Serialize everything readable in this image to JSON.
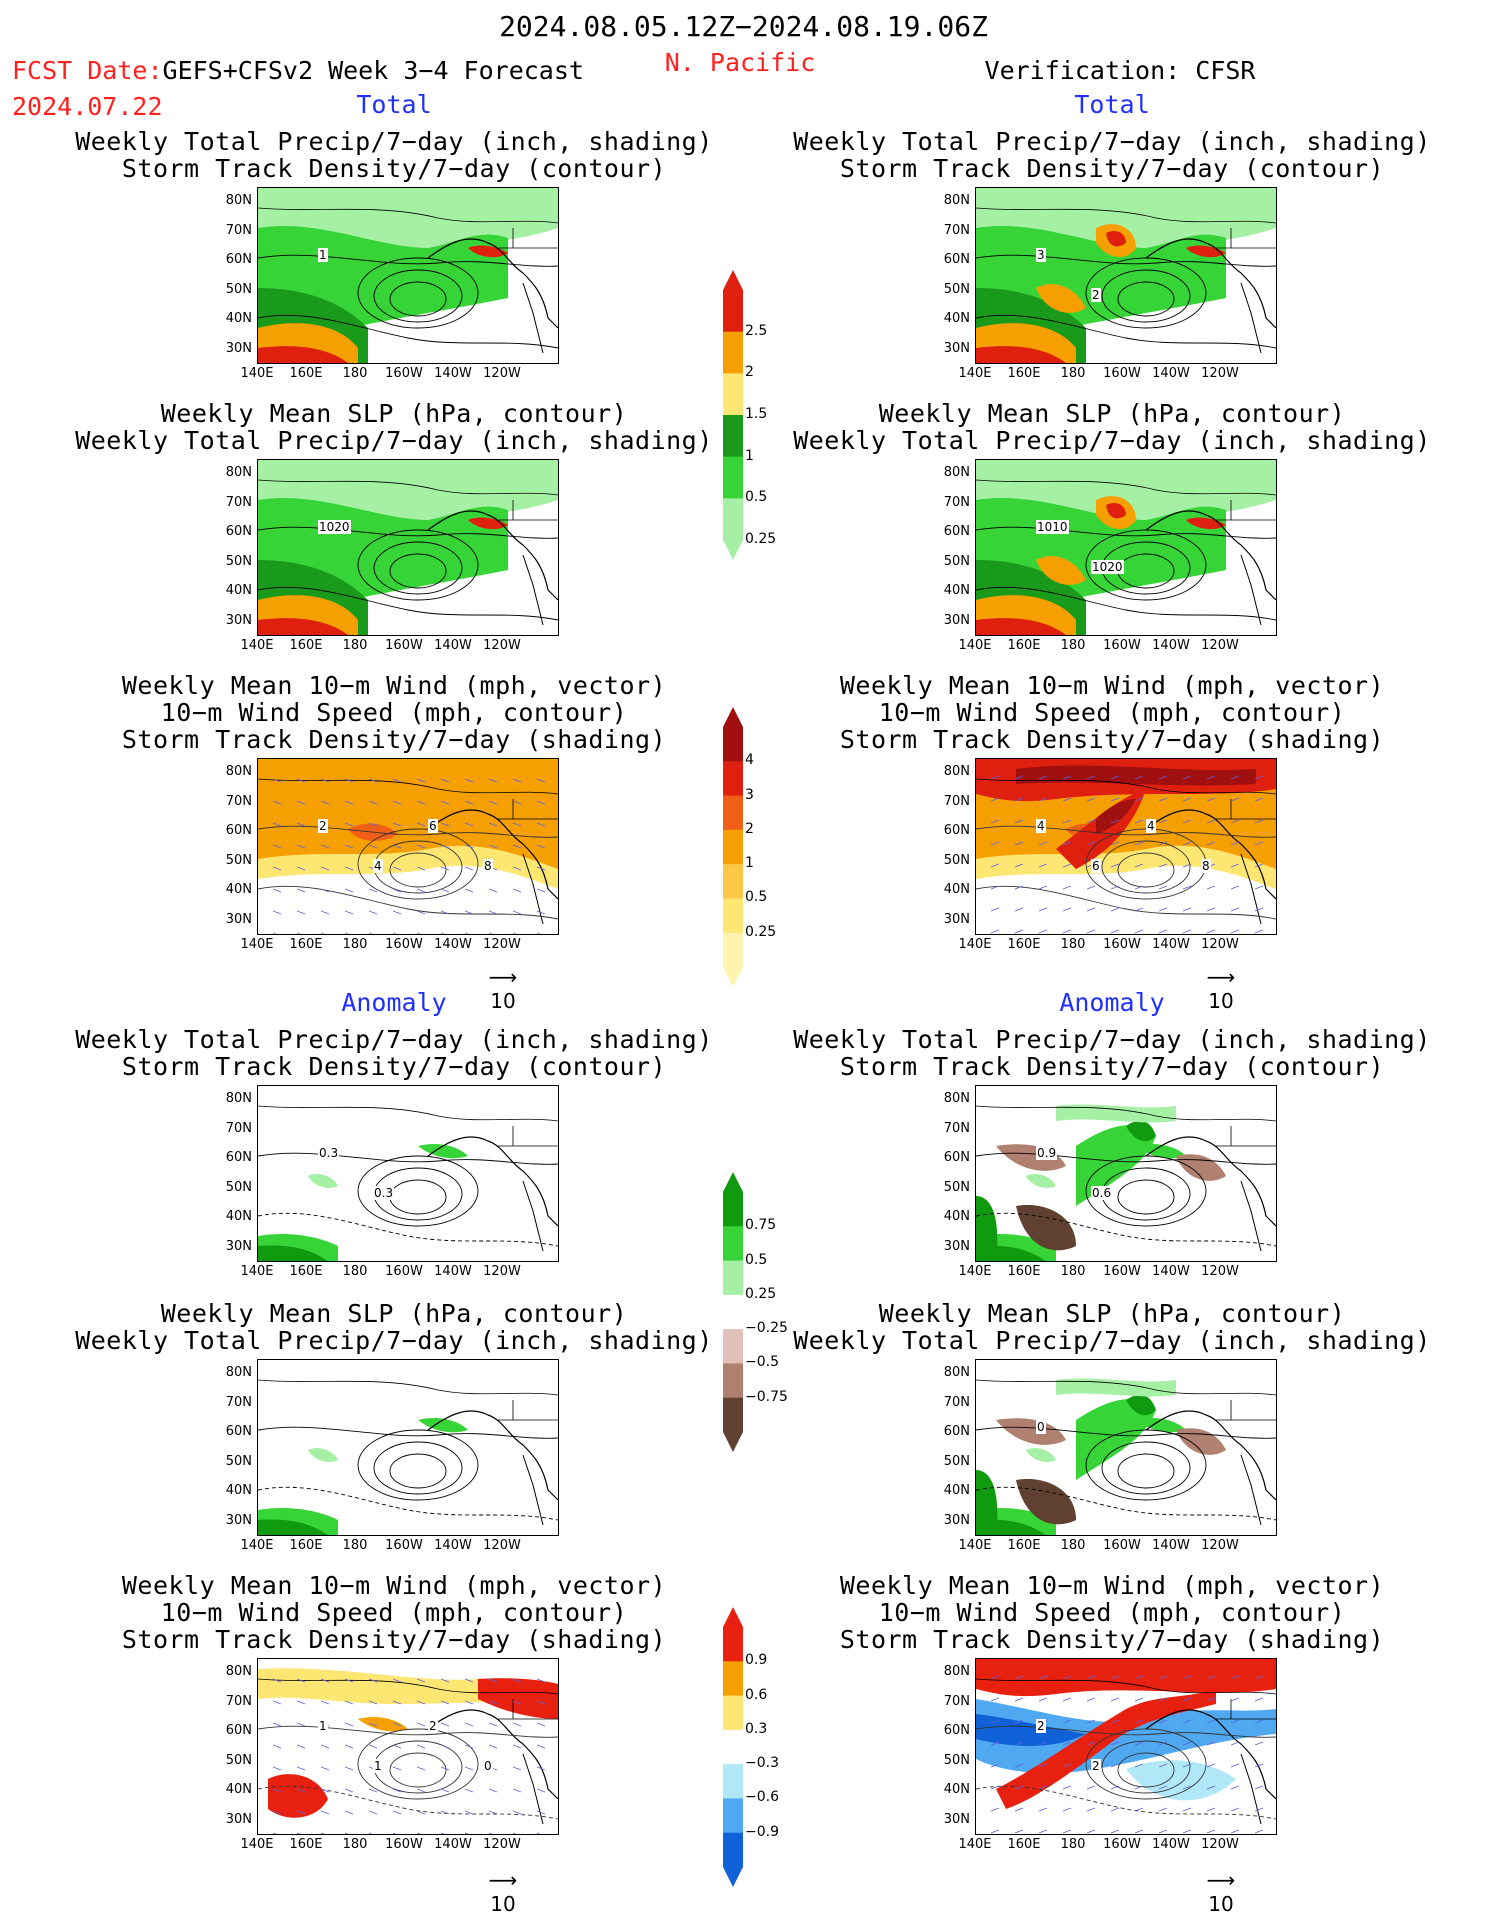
{
  "header": {
    "date_range": "2024.08.05.12Z−2024.08.19.06Z",
    "fcst_date_label": "FCST Date:",
    "fcst_model": "GEFS+CFSv2 Week 3−4 Forecast",
    "fcst_date": "2024.07.22",
    "region": "N. Pacific",
    "verification": "Verification: CFSR"
  },
  "sections": {
    "total_left": "Total",
    "total_right": "Total",
    "anomaly_left": "Anomaly",
    "anomaly_right": "Anomaly"
  },
  "titles": {
    "p1": [
      "Weekly Total Precip/7−day (inch, shading)",
      "Storm Track Density/7−day (contour)"
    ],
    "p2": [
      "Weekly Mean SLP (hPa, contour)",
      "Weekly Total Precip/7−day (inch, shading)"
    ],
    "p3": [
      "Weekly Mean 10−m Wind (mph, vector)",
      "10−m Wind Speed (mph, contour)",
      "Storm Track Density/7−day (shading)"
    ]
  },
  "axes": {
    "lat_ticks": [
      "80N",
      "70N",
      "60N",
      "50N",
      "40N",
      "30N"
    ],
    "lon_ticks": [
      "140E",
      "160E",
      "180",
      "160W",
      "140W",
      "120W"
    ]
  },
  "vector_ref": "10",
  "contour_labels": {
    "t1_left": [
      "1"
    ],
    "t1_right": [
      "3",
      "2"
    ],
    "t2_left": [
      "1020"
    ],
    "t2_right": [
      "1010",
      "1020"
    ],
    "t3_left": [
      "2",
      "4",
      "6",
      "8"
    ],
    "t3_right": [
      "4",
      "6",
      "4",
      "8"
    ],
    "a1_left": [
      "0.3",
      "0.3"
    ],
    "a1_right": [
      "0.9",
      "0.6"
    ],
    "a2_right": [
      "0"
    ],
    "a3_left": [
      "1",
      "1",
      "2",
      "0"
    ],
    "a3_right": [
      "2",
      "2"
    ]
  },
  "colorbars": {
    "precip_total": {
      "labels": [
        "2.5",
        "2",
        "1.5",
        "1",
        "0.5",
        "0.25"
      ],
      "colors": [
        "#e0200f",
        "#f5a000",
        "#fde672",
        "#1a9a1a",
        "#37d437",
        "#a6f0a6"
      ]
    },
    "storm_total": {
      "labels": [
        "4",
        "3",
        "2",
        "1",
        "0.5",
        "0.25"
      ],
      "colors": [
        "#a01010",
        "#e0200f",
        "#f26018",
        "#f5a000",
        "#fbc848",
        "#fde672",
        "#fff3b0"
      ]
    },
    "precip_anom": {
      "labels": [
        "0.75",
        "0.5",
        "0.25",
        "−0.25",
        "−0.5",
        "−0.75"
      ],
      "colors": [
        "#0f9a0f",
        "#37d437",
        "#a6f0a6",
        "#ffffff",
        "#e0c0b8",
        "#b08070",
        "#604030"
      ]
    },
    "storm_anom": {
      "labels": [
        "0.9",
        "0.6",
        "0.3",
        "−0.3",
        "−0.6",
        "−0.9"
      ],
      "colors": [
        "#e82010",
        "#f5a000",
        "#fde672",
        "#ffffff",
        "#b0e8f8",
        "#50a8f0",
        "#1060d8"
      ]
    }
  }
}
